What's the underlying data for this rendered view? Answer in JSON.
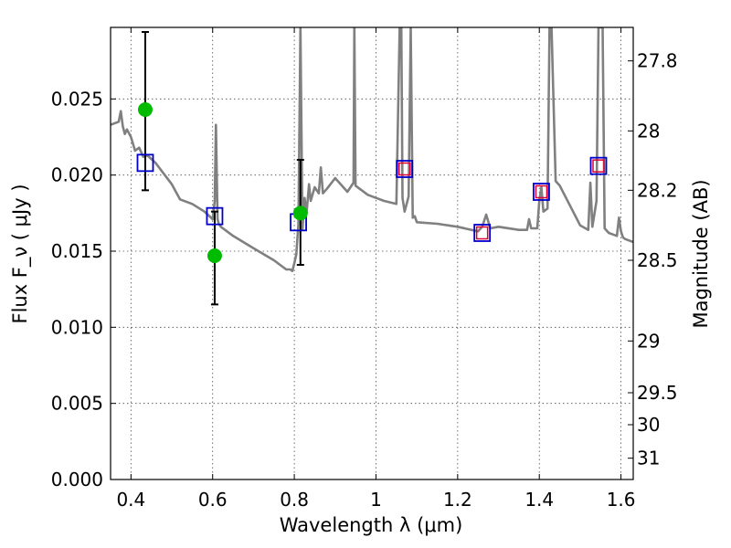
{
  "chart_data": {
    "type": "scatter",
    "xlabel": "Wavelength  λ (μm)",
    "ylabel": "Flux  F_ν ( μJy )",
    "ylabel_right": "Magnitude (AB)",
    "xlim": [
      0.35,
      1.63
    ],
    "ylim": [
      0.0,
      0.0297
    ],
    "x_ticks": [
      0.4,
      0.6,
      0.8,
      1.0,
      1.2,
      1.4,
      1.6
    ],
    "x_tick_labels": [
      "0.4",
      "0.6",
      "0.8",
      "1",
      "1.2",
      "1.4",
      "1.6"
    ],
    "y_ticks": [
      0.0,
      0.005,
      0.01,
      0.015,
      0.02,
      0.025
    ],
    "y_tick_labels": [
      "0.000",
      "0.005",
      "0.010",
      "0.015",
      "0.020",
      "0.025"
    ],
    "right_ticks": [
      {
        "label": "27.8",
        "flux": 0.0275
      },
      {
        "label": "28",
        "flux": 0.0229
      },
      {
        "label": "28.2",
        "flux": 0.019
      },
      {
        "label": "28.5",
        "flux": 0.0144
      },
      {
        "label": "29",
        "flux": 0.0091
      },
      {
        "label": "29.5",
        "flux": 0.0057
      },
      {
        "label": "30",
        "flux": 0.0036
      },
      {
        "label": "31",
        "flux": 0.0014
      }
    ],
    "grid": true,
    "colors": {
      "spectrum": "#808080",
      "observed_points": "#00bb00",
      "model_boxes": "#0000cc",
      "model_boxes_inner": "#dd0033",
      "errorbars": "#000000"
    },
    "series": [
      {
        "kind": "line",
        "x": [
          0.35,
          0.37,
          0.375,
          0.38,
          0.385,
          0.39,
          0.4,
          0.41,
          0.42,
          0.43,
          0.44,
          0.46,
          0.48,
          0.5,
          0.52,
          0.55,
          0.58,
          0.6,
          0.605,
          0.608,
          0.612,
          0.615,
          0.62,
          0.65,
          0.7,
          0.75,
          0.78,
          0.79,
          0.795,
          0.8,
          0.805,
          0.81,
          0.815,
          0.82,
          0.825,
          0.83,
          0.836,
          0.84,
          0.85,
          0.86,
          0.865,
          0.87,
          0.88,
          0.9,
          0.93,
          0.945,
          0.947,
          0.95,
          0.96,
          0.98,
          1.0,
          1.02,
          1.05,
          1.058,
          1.062,
          1.065,
          1.07,
          1.08,
          1.085,
          1.09,
          1.095,
          1.1,
          1.15,
          1.2,
          1.25,
          1.26,
          1.27,
          1.28,
          1.3,
          1.35,
          1.37,
          1.375,
          1.38,
          1.395,
          1.4,
          1.405,
          1.41,
          1.42,
          1.425,
          1.43,
          1.44,
          1.45,
          1.5,
          1.52,
          1.525,
          1.53,
          1.54,
          1.545,
          1.55,
          1.555,
          1.56,
          1.57,
          1.58,
          1.59,
          1.595,
          1.6,
          1.605,
          1.61,
          1.63
        ],
        "y": [
          0.0233,
          0.0235,
          0.0242,
          0.0232,
          0.0227,
          0.023,
          0.0225,
          0.0216,
          0.0218,
          0.0212,
          0.0213,
          0.0208,
          0.0201,
          0.0194,
          0.0184,
          0.0181,
          0.0176,
          0.0171,
          0.0183,
          0.0233,
          0.0171,
          0.0168,
          0.0166,
          0.016,
          0.0152,
          0.0144,
          0.0138,
          0.0138,
          0.0137,
          0.0142,
          0.0148,
          0.0168,
          0.0297,
          0.0164,
          0.0185,
          0.0175,
          0.0194,
          0.0183,
          0.0192,
          0.0188,
          0.0205,
          0.0188,
          0.0191,
          0.0198,
          0.0189,
          0.0195,
          0.0297,
          0.0193,
          0.0191,
          0.0187,
          0.0185,
          0.0183,
          0.0181,
          0.0297,
          0.0297,
          0.0185,
          0.0176,
          0.0186,
          0.0297,
          0.0172,
          0.0173,
          0.0169,
          0.0168,
          0.0166,
          0.0163,
          0.0166,
          0.0174,
          0.0165,
          0.0166,
          0.0164,
          0.0164,
          0.0171,
          0.0165,
          0.0165,
          0.0183,
          0.0192,
          0.0176,
          0.0178,
          0.0297,
          0.0297,
          0.0196,
          0.0193,
          0.0167,
          0.0164,
          0.0195,
          0.0166,
          0.0183,
          0.0297,
          0.0297,
          0.0297,
          0.0165,
          0.0162,
          0.0161,
          0.016,
          0.0172,
          0.0163,
          0.0159,
          0.0158,
          0.0156
        ]
      },
      {
        "kind": "points",
        "x": [
          0.435,
          0.605,
          0.815
        ],
        "y": [
          0.0243,
          0.0147,
          0.0175
        ]
      },
      {
        "kind": "errorbars",
        "x": [
          0.435,
          0.605,
          0.815
        ],
        "lo": [
          0.019,
          0.0115,
          0.0141
        ],
        "hi": [
          0.0294,
          0.0176,
          0.021
        ]
      },
      {
        "kind": "boxes",
        "x": [
          0.435,
          0.605,
          0.81,
          1.07,
          1.26,
          1.405,
          1.545
        ],
        "y": [
          0.0208,
          0.0173,
          0.0169,
          0.0204,
          0.0162,
          0.0189,
          0.0206
        ]
      },
      {
        "kind": "inner_boxes",
        "x": [
          1.07,
          1.26,
          1.405,
          1.545
        ],
        "y": [
          0.0204,
          0.0162,
          0.0189,
          0.0206
        ]
      }
    ]
  }
}
